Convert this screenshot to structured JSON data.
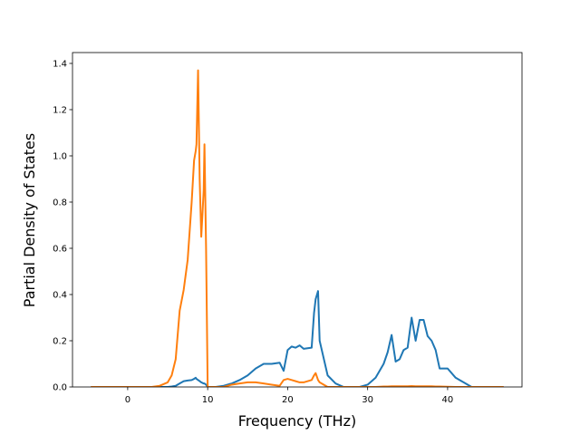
{
  "chart_data": {
    "type": "line",
    "x_label": "Frequency (THz)",
    "y_label": "Partial Density of States",
    "x": [
      -4.6,
      0,
      3,
      4,
      5,
      5.5,
      6,
      6.5,
      7,
      7.5,
      8,
      8.3,
      8.5,
      8.6,
      8.8,
      9,
      9.2,
      9.5,
      9.6,
      9.8,
      10,
      11,
      12,
      13,
      14,
      15,
      16,
      17,
      18,
      19,
      19.5,
      20,
      20.5,
      21,
      21.5,
      22,
      23,
      23.3,
      23.5,
      23.8,
      24,
      25,
      26,
      27,
      29,
      30,
      31,
      32,
      32.5,
      33,
      33.5,
      34,
      34.5,
      35,
      35.5,
      36,
      36.5,
      37,
      37.5,
      38,
      38.5,
      39,
      40,
      41,
      42,
      43,
      47
    ],
    "series": [
      {
        "color": "#1f77b4",
        "values": [
          0,
          0,
          0,
          0,
          0,
          0.002,
          0.005,
          0.015,
          0.025,
          0.028,
          0.03,
          0.035,
          0.04,
          0.035,
          0.03,
          0.025,
          0.02,
          0.015,
          0.015,
          0.01,
          0,
          0,
          0.005,
          0.015,
          0.03,
          0.05,
          0.08,
          0.1,
          0.1,
          0.105,
          0.07,
          0.16,
          0.175,
          0.17,
          0.18,
          0.165,
          0.17,
          0.32,
          0.38,
          0.415,
          0.2,
          0.05,
          0.015,
          0,
          0,
          0.01,
          0.04,
          0.1,
          0.15,
          0.225,
          0.11,
          0.12,
          0.16,
          0.17,
          0.3,
          0.2,
          0.29,
          0.29,
          0.22,
          0.2,
          0.16,
          0.08,
          0.08,
          0.04,
          0.02,
          0,
          0
        ]
      },
      {
        "color": "#ff7f0e",
        "values": [
          0,
          0,
          0,
          0.005,
          0.02,
          0.05,
          0.12,
          0.33,
          0.42,
          0.55,
          0.8,
          0.98,
          1.02,
          1.05,
          1.37,
          0.9,
          0.65,
          0.85,
          1.05,
          0.6,
          0,
          0,
          0,
          0.01,
          0.015,
          0.02,
          0.02,
          0.015,
          0.01,
          0.005,
          0.03,
          0.035,
          0.03,
          0.025,
          0.02,
          0.02,
          0.03,
          0.05,
          0.06,
          0.03,
          0.02,
          0,
          0,
          0,
          0,
          0,
          0,
          0.002,
          0.002,
          0.003,
          0.003,
          0.003,
          0.003,
          0.003,
          0.004,
          0.003,
          0.003,
          0.003,
          0.003,
          0.003,
          0.002,
          0.002,
          0.001,
          0,
          0,
          0,
          0
        ]
      }
    ],
    "xlim": [
      -6.9,
      49.3
    ],
    "ylim": [
      0,
      1.447
    ],
    "xticks": [
      0,
      10,
      20,
      30,
      40
    ],
    "yticks": [
      {
        "value": 0,
        "label": "0.0"
      },
      0.2,
      0.4,
      0.6,
      0.8,
      {
        "value": 1,
        "label": "1.0"
      },
      1.2,
      1.4
    ],
    "grid": false
  }
}
